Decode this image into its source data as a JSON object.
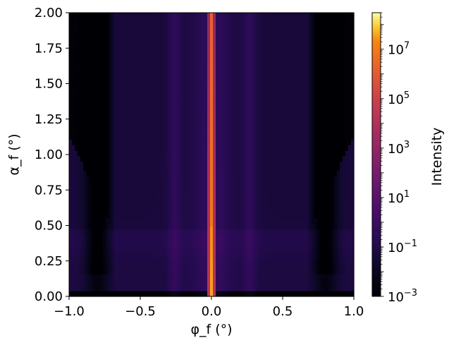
{
  "chart_data": {
    "type": "heatmap",
    "title": "",
    "xlabel": "φ_f (°)",
    "ylabel": "α_f (°)",
    "xlim": [
      -1.0,
      1.0
    ],
    "ylim": [
      0.0,
      2.0
    ],
    "x_ticks": [
      {
        "value": -1.0,
        "label": "−1.0"
      },
      {
        "value": -0.5,
        "label": "−0.5"
      },
      {
        "value": 0.0,
        "label": "0.0"
      },
      {
        "value": 0.5,
        "label": "0.5"
      },
      {
        "value": 1.0,
        "label": "1.0"
      }
    ],
    "y_ticks": [
      {
        "value": 0.0,
        "label": "0.00"
      },
      {
        "value": 0.25,
        "label": "0.25"
      },
      {
        "value": 0.5,
        "label": "0.50"
      },
      {
        "value": 0.75,
        "label": "0.75"
      },
      {
        "value": 1.0,
        "label": "1.00"
      },
      {
        "value": 1.25,
        "label": "1.25"
      },
      {
        "value": 1.5,
        "label": "1.50"
      },
      {
        "value": 1.75,
        "label": "1.75"
      },
      {
        "value": 2.0,
        "label": "2.00"
      }
    ],
    "colorbar": {
      "label": "Intensity",
      "scale": "log",
      "range": [
        0.001,
        300000000
      ],
      "colormap": "inferno",
      "ticks": [
        {
          "value": 0.001,
          "base": "10",
          "exp": "−3"
        },
        {
          "value": 0.1,
          "base": "10",
          "exp": "−1"
        },
        {
          "value": 10,
          "base": "10",
          "exp": "1"
        },
        {
          "value": 1000,
          "base": "10",
          "exp": "3"
        },
        {
          "value": 100000,
          "base": "10",
          "exp": "5"
        },
        {
          "value": 10000000,
          "base": "10",
          "exp": "7"
        }
      ]
    },
    "features": {
      "specular_rod_phi": 0.0,
      "bragg_rod_phi": [
        -0.26,
        0.27
      ],
      "yoneda_alpha": 0.4,
      "dark_region_phi": [
        -0.8,
        0.8
      ]
    },
    "grid": false
  }
}
